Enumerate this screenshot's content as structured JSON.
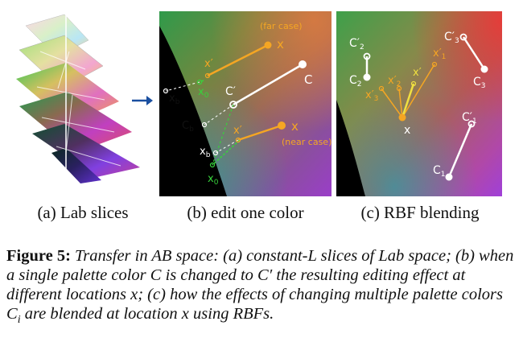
{
  "panels": {
    "a": {
      "label": "(a) Lab slices"
    },
    "b": {
      "label": "(b) edit one color",
      "far_case": "(far case)",
      "near_case": "(near case)",
      "x": "x",
      "x_prime": "x′",
      "x0": "x",
      "x0_sub": "0",
      "xb": "x",
      "xb_sub": "b",
      "cb": "C",
      "cb_sub": "b",
      "c": "C",
      "c_prime": "C′"
    },
    "c": {
      "label": "(c) RBF blending",
      "c1": "C",
      "c1_sub": "1",
      "c1p": "C′",
      "c1p_sub": "1",
      "c2": "C",
      "c2_sub": "2",
      "c2p": "C′",
      "c2p_sub": "2",
      "c3": "C",
      "c3_sub": "3",
      "c3p": "C′",
      "c3p_sub": "3",
      "x": "x",
      "x_prime": "x′",
      "x1p": "x′",
      "x1p_sub": "1",
      "x2p": "x′",
      "x2p_sub": "2",
      "x3p": "x′",
      "x3p_sub": "3"
    }
  },
  "caption": {
    "label": "Figure 5:",
    "t1": "Transfer in AB space: (a) constant-L slices of Lab space; (b) when a single palette color ",
    "C": "C",
    "t2": " is changed to ",
    "Cp": "C′",
    "t3": " the resulting editing effect at different locations ",
    "x1": "x",
    "t4": "; (c) how the effects of changing multiple palette colors ",
    "Ci": "C",
    "Ci_sub": "i",
    "t5": " are blended at location ",
    "x2": "x",
    "t6": " using RBFs."
  },
  "colors": {
    "accent_orange": "#f5a623",
    "guide_green": "#37d23c",
    "guide_yellow": "#f0e040",
    "marker_white": "#ffffff"
  }
}
